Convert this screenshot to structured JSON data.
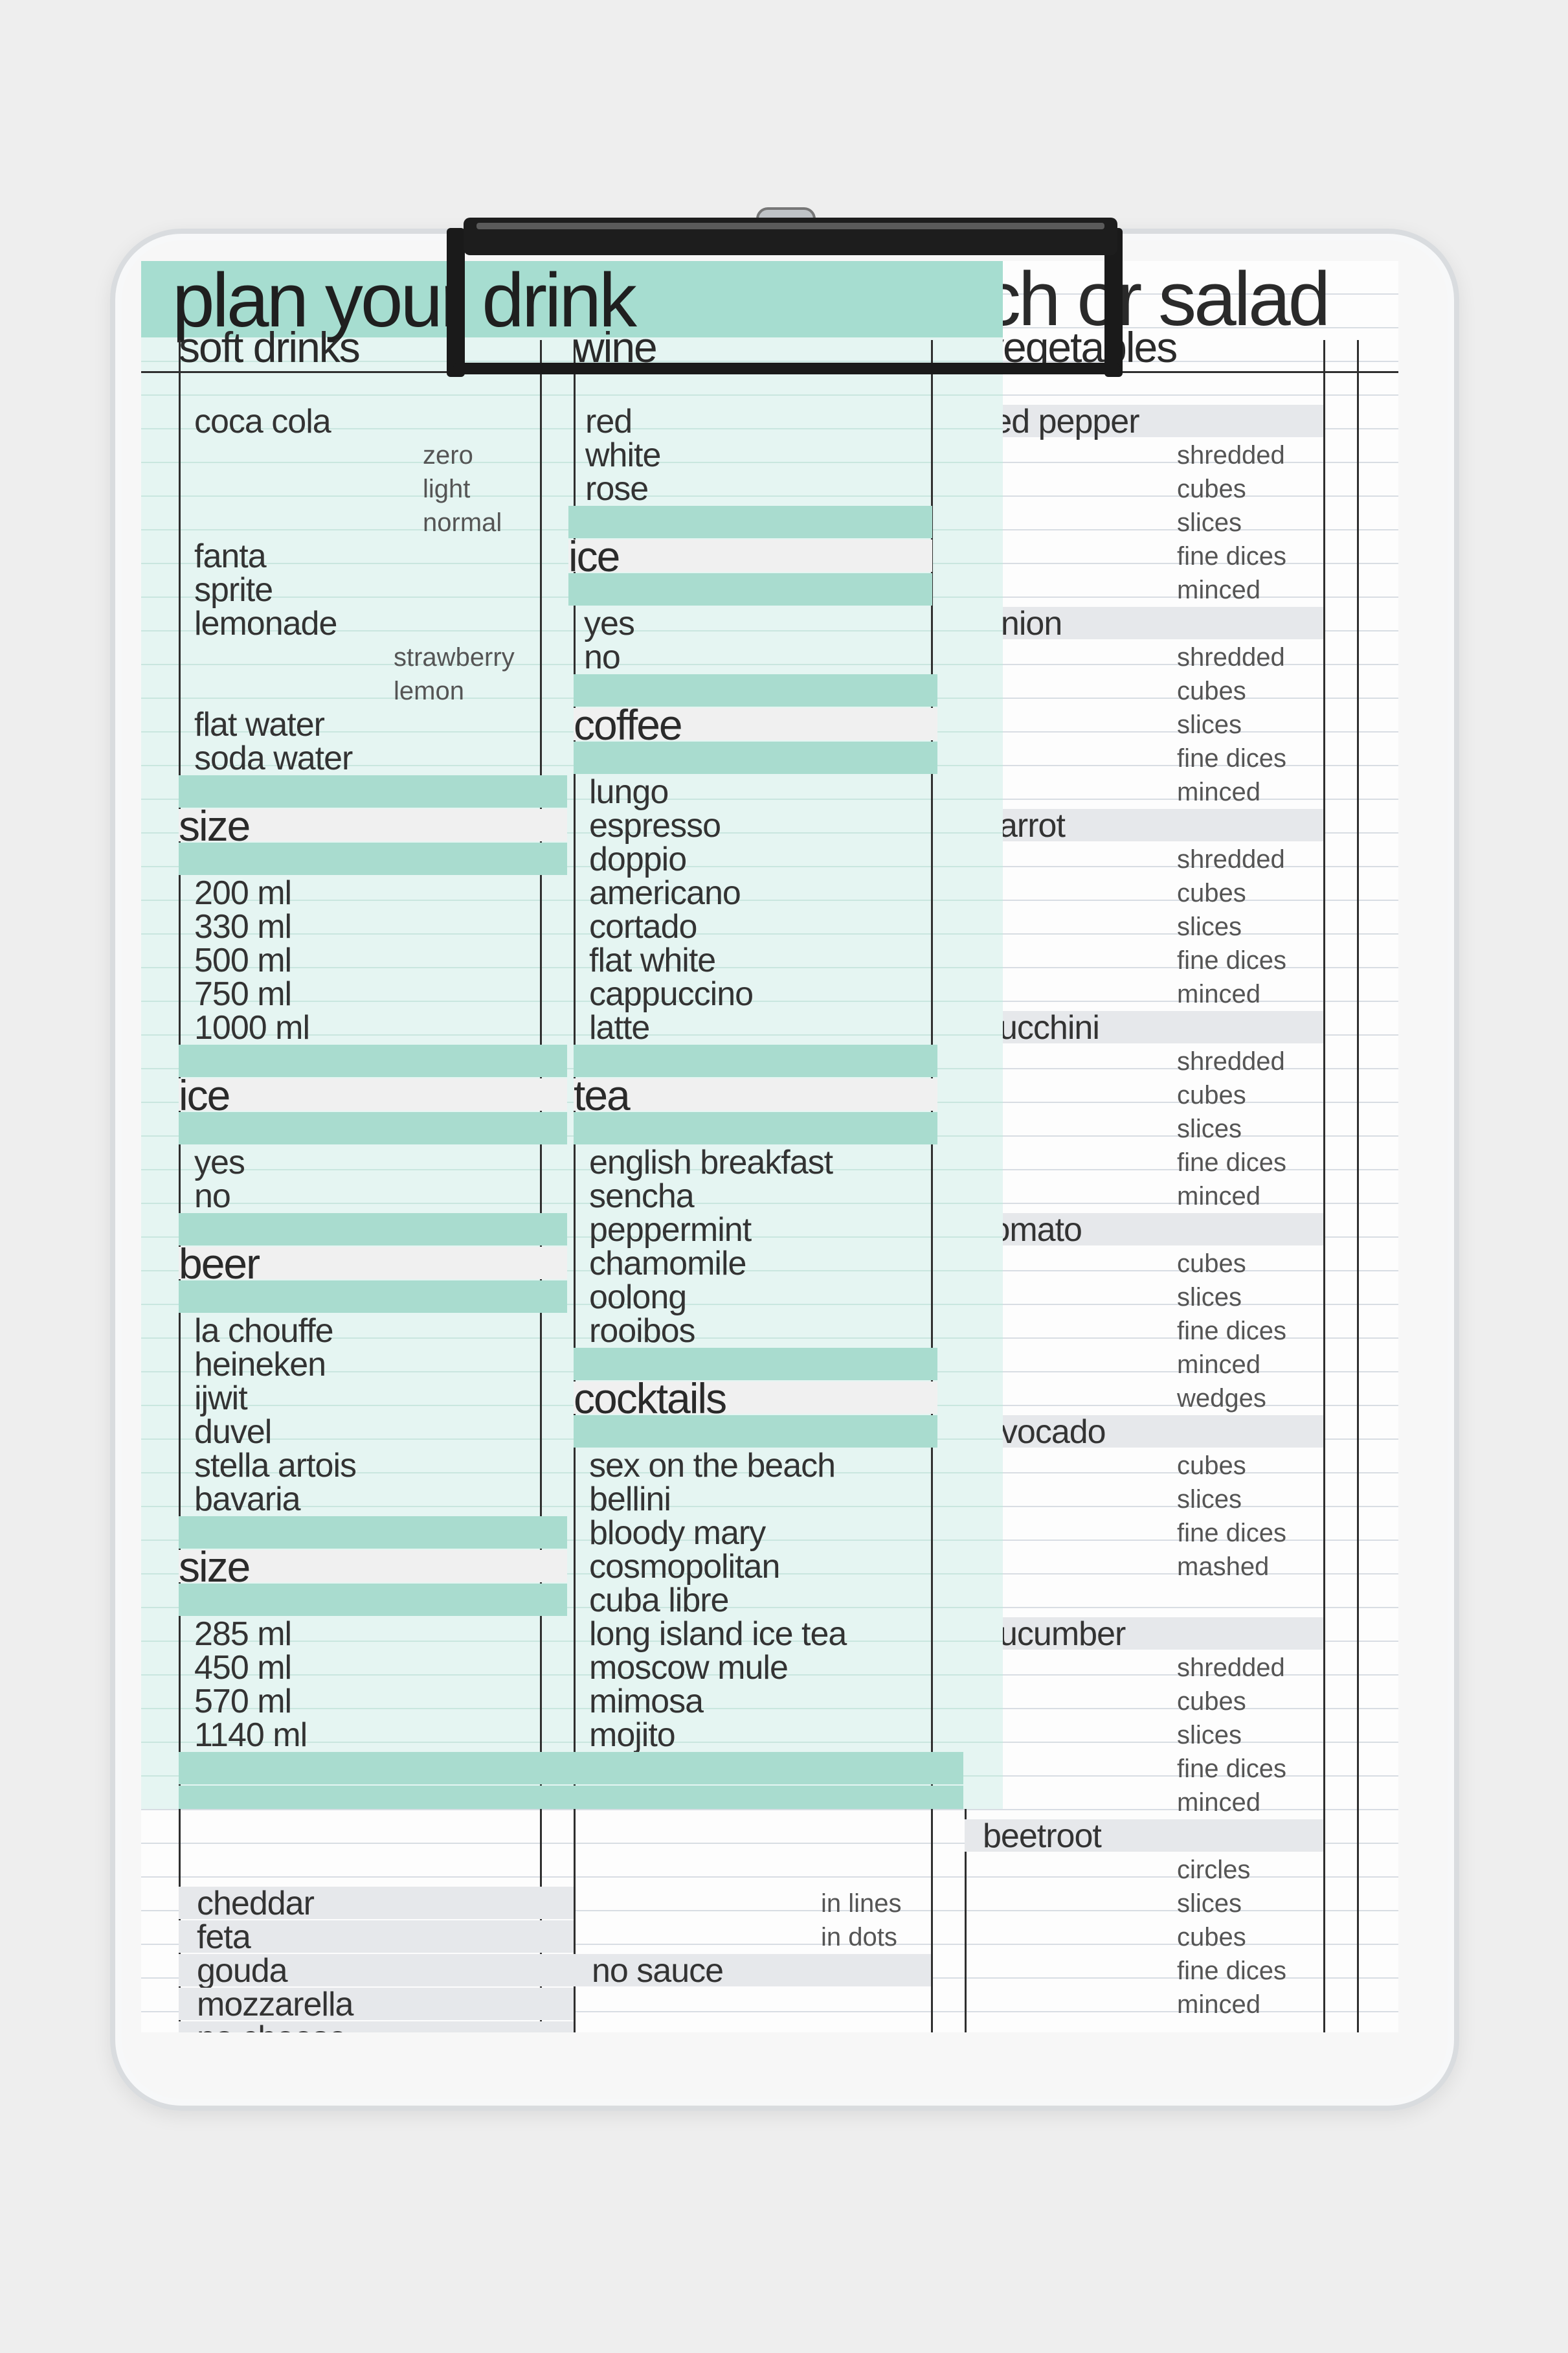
{
  "back_sheet": {
    "title": "plan your lunch or salad",
    "visible_title_fragment": "ch or salad",
    "subheading": "vegetables",
    "veg_col": [
      {
        "head": "red pepper",
        "opts": [
          "shredded",
          "cubes",
          "slices",
          "fine dices",
          "minced"
        ]
      },
      {
        "head": "onion",
        "opts": [
          "shredded",
          "cubes",
          "slices",
          "fine dices",
          "minced"
        ]
      },
      {
        "head": "carrot",
        "opts": [
          "shredded",
          "cubes",
          "slices",
          "fine dices",
          "minced"
        ]
      },
      {
        "head": "zucchini",
        "opts": [
          "shredded",
          "cubes",
          "slices",
          "fine dices",
          "minced"
        ]
      },
      {
        "head": "tomato",
        "opts": [
          "cubes",
          "slices",
          "fine dices",
          "minced",
          "wedges"
        ]
      },
      {
        "head": "avocado",
        "opts": [
          "cubes",
          "slices",
          "fine dices",
          "mashed"
        ]
      },
      {
        "head": "cucumber",
        "opts": [
          "shredded",
          "cubes",
          "slices",
          "fine dices",
          "minced"
        ]
      },
      {
        "head": "beetroot",
        "opts": [
          "circles",
          "slices",
          "cubes",
          "fine dices",
          "minced"
        ]
      }
    ],
    "cheese": [
      "cheddar",
      "feta",
      "gouda",
      "mozzarella",
      "no cheese"
    ],
    "sauce_opts": [
      "in lines",
      "in dots"
    ],
    "sauce_none": "no sauce"
  },
  "front_sheet": {
    "title": "plan your drink",
    "col1": {
      "sub": "soft drinks",
      "soft": [
        "coca cola",
        "fanta",
        "sprite",
        "lemonade",
        "flat water",
        "soda water"
      ],
      "cola_opts": [
        "zero",
        "light",
        "normal"
      ],
      "lemonade_opts": [
        "strawberry",
        "lemon"
      ],
      "size_head": "size",
      "sizes": [
        "200 ml",
        "330 ml",
        "500 ml",
        "750 ml",
        "1000 ml"
      ],
      "ice_head": "ice",
      "ice": [
        "yes",
        "no"
      ],
      "beer_head": "beer",
      "beers": [
        "la chouffe",
        "heineken",
        "ijwit",
        "duvel",
        "stella artois",
        "bavaria"
      ],
      "size2_head": "size",
      "sizes2": [
        "285 ml",
        "450 ml",
        "570 ml",
        "1140 ml"
      ]
    },
    "col2": {
      "sub": "wine",
      "wine": [
        "red",
        "white",
        "rose"
      ],
      "ice_head": "ice",
      "ice": [
        "yes",
        "no"
      ],
      "coffee_head": "coffee",
      "coffee": [
        "lungo",
        "espresso",
        "doppio",
        "americano",
        "cortado",
        "flat white",
        "cappuccino",
        "latte"
      ],
      "tea_head": "tea",
      "tea": [
        "english breakfast",
        "sencha",
        "peppermint",
        "chamomile",
        "oolong",
        "rooibos"
      ],
      "cocktails_head": "cocktails",
      "cocktails": [
        "sex on the beach",
        "bellini",
        "bloody mary",
        "cosmopolitan",
        "cuba libre",
        "long island ice tea",
        "moscow mule",
        "mimosa",
        "mojito"
      ]
    }
  },
  "colors": {
    "mint": "#a6ddd0",
    "mint_light": "#e5f5f2",
    "band_grey": "#e6e8eb",
    "clip": "#1d1d1d"
  },
  "objects": {
    "clipboard": "clear acrylic clipboard",
    "clip_icon": "binder-clip-icon"
  }
}
